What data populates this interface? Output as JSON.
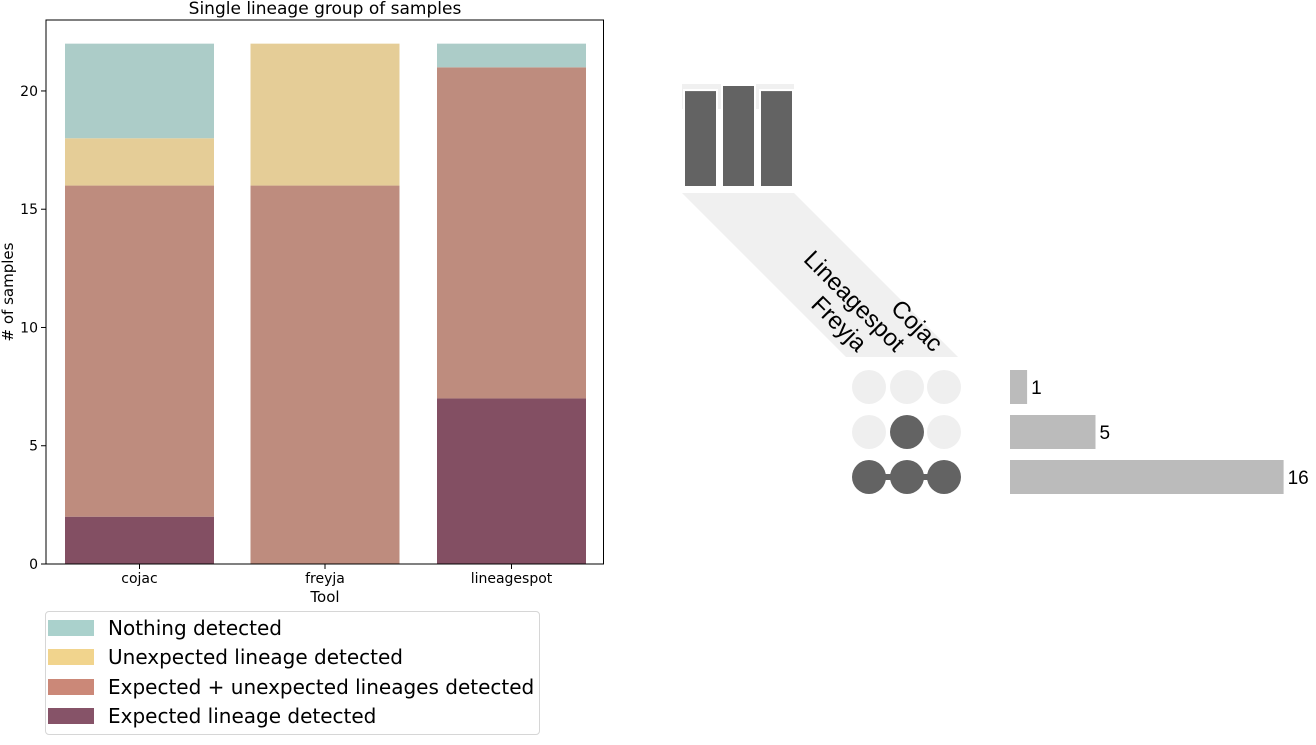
{
  "chart_data": [
    {
      "type": "bar",
      "stacked": true,
      "title": "Single lineage group of samples",
      "xlabel": "Tool",
      "ylabel": "# of samples",
      "categories": [
        "cojac",
        "freyja",
        "lineagespot"
      ],
      "ylim": [
        0,
        22
      ],
      "yticks": [
        0,
        5,
        10,
        15,
        20
      ],
      "series": [
        {
          "name": "Expected lineage detected",
          "color": "#834f63",
          "values": [
            2,
            0,
            7
          ]
        },
        {
          "name": "Expected + unexpected lineages detected",
          "color": "#be8c7e",
          "values": [
            14,
            16,
            14
          ]
        },
        {
          "name": "Unexpected lineage detected",
          "color": "#e5cd97",
          "values": [
            2,
            6,
            0
          ]
        },
        {
          "name": "Nothing detected",
          "color": "#acccc8",
          "values": [
            4,
            0,
            1
          ]
        }
      ],
      "legend": {
        "placement": "bottom",
        "order": [
          "Nothing detected",
          "Unexpected lineage detected",
          "Expected + unexpected lineages detected",
          "Expected lineage detected"
        ]
      }
    },
    {
      "type": "upset",
      "sets": [
        "Freyja",
        "Lineagespot",
        "Cojac"
      ],
      "set_sizes_relative": [
        19,
        20,
        19
      ],
      "intersections": [
        {
          "members": [
            false,
            false,
            false
          ],
          "count": 1,
          "label": "1"
        },
        {
          "members": [
            false,
            true,
            false
          ],
          "count": 5,
          "label": "5"
        },
        {
          "members": [
            true,
            true,
            true
          ],
          "count": 16,
          "label": "16"
        }
      ],
      "colors": {
        "active": "#636363",
        "inactive": "#efefef",
        "bar": "#bbbbbb",
        "set_bar": "#636363",
        "band": "#f0f0f0"
      }
    }
  ]
}
